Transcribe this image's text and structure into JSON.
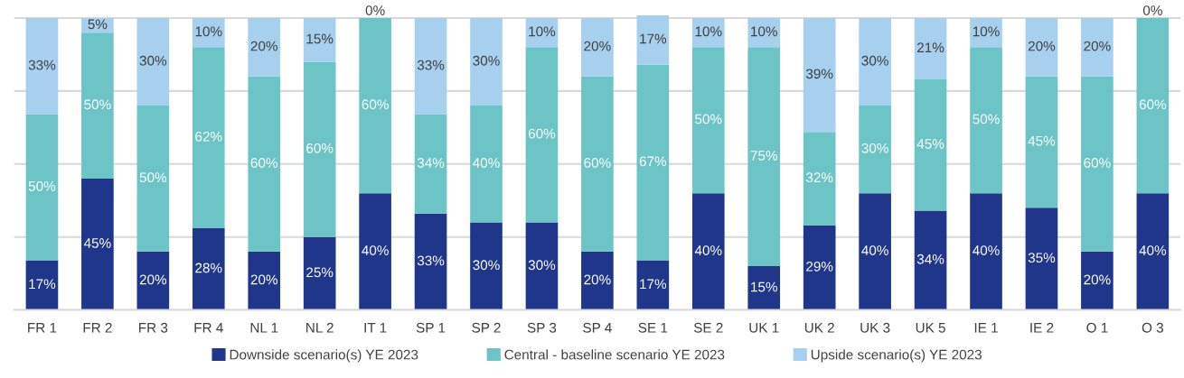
{
  "chart_data": {
    "type": "bar",
    "stacked": true,
    "categories": [
      "FR 1",
      "FR 2",
      "FR 3",
      "FR 4",
      "NL 1",
      "NL 2",
      "IT 1",
      "SP 1",
      "SP 2",
      "SP 3",
      "SP 4",
      "SE 1",
      "SE 2",
      "UK 1",
      "UK 2",
      "UK 3",
      "UK 5",
      "IE 1",
      "IE 2",
      "O 1",
      "O 3"
    ],
    "series": [
      {
        "name": "Downside scenario(s) YE 2023",
        "color": "#20368a",
        "values": [
          17,
          45,
          20,
          28,
          20,
          25,
          40,
          33,
          30,
          30,
          20,
          17,
          40,
          15,
          29,
          40,
          34,
          40,
          35,
          20,
          40
        ],
        "value_labels": [
          "17%",
          "45%",
          "20%",
          "28%",
          "20%",
          "25%",
          "40%",
          "33%",
          "30%",
          "30%",
          "20%",
          "17%",
          "40%",
          "15%",
          "29%",
          "40%",
          "34%",
          "40%",
          "35%",
          "20%",
          "40%"
        ]
      },
      {
        "name": "Central - baseline scenario YE 2023",
        "color": "#6cc4c6",
        "values": [
          50,
          50,
          50,
          62,
          60,
          60,
          60,
          34,
          40,
          60,
          60,
          67,
          50,
          75,
          32,
          30,
          45,
          50,
          45,
          60,
          60
        ],
        "value_labels": [
          "50%",
          "50%",
          "50%",
          "62%",
          "60%",
          "60%",
          "60%",
          "34%",
          "40%",
          "60%",
          "60%",
          "67%",
          "50%",
          "75%",
          "32%",
          "30%",
          "45%",
          "50%",
          "45%",
          "60%",
          "60%"
        ]
      },
      {
        "name": "Upside scenario(s) YE 2023",
        "color": "#a7cfee",
        "values": [
          33,
          5,
          30,
          10,
          20,
          15,
          0,
          33,
          30,
          10,
          20,
          17,
          10,
          10,
          39,
          30,
          21,
          10,
          20,
          20,
          0
        ],
        "value_labels": [
          "33%",
          "5%",
          "30%",
          "10%",
          "20%",
          "15%",
          "0%",
          "33%",
          "30%",
          "10%",
          "20%",
          "17%",
          "10%",
          "10%",
          "39%",
          "30%",
          "21%",
          "10%",
          "20%",
          "20%",
          "0%"
        ]
      }
    ],
    "tick_labels": "x",
    "grid": "y",
    "legend": "bottom"
  }
}
